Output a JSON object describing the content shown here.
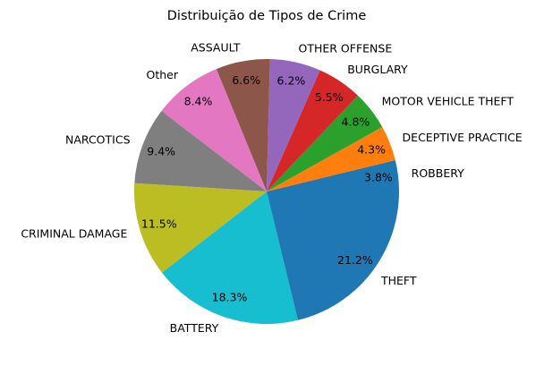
{
  "chart_data": {
    "type": "pie",
    "title": "Distribuição de Tipos de Crime",
    "start_angle_deg": 0,
    "direction": "counterclockwise",
    "slices": [
      {
        "label": "ROBBERY",
        "value": 3.8,
        "pct_label": "3.8%",
        "color": "#1f77b4"
      },
      {
        "label": "DECEPTIVE PRACTICE",
        "value": 4.3,
        "pct_label": "4.3%",
        "color": "#ff7f0e"
      },
      {
        "label": "MOTOR VEHICLE THEFT",
        "value": 4.8,
        "pct_label": "4.8%",
        "color": "#2ca02c"
      },
      {
        "label": "BURGLARY",
        "value": 5.5,
        "pct_label": "5.5%",
        "color": "#d62728"
      },
      {
        "label": "OTHER OFFENSE",
        "value": 6.2,
        "pct_label": "6.2%",
        "color": "#9467bd"
      },
      {
        "label": "ASSAULT",
        "value": 6.6,
        "pct_label": "6.6%",
        "color": "#8c564b"
      },
      {
        "label": "Other",
        "value": 8.4,
        "pct_label": "8.4%",
        "color": "#e377c2"
      },
      {
        "label": "NARCOTICS",
        "value": 9.4,
        "pct_label": "9.4%",
        "color": "#7f7f7f"
      },
      {
        "label": "CRIMINAL DAMAGE",
        "value": 11.5,
        "pct_label": "11.5%",
        "color": "#bcbd22"
      },
      {
        "label": "BATTERY",
        "value": 18.3,
        "pct_label": "18.3%",
        "color": "#17becf"
      },
      {
        "label": "THEFT",
        "value": 21.2,
        "pct_label": "21.2%",
        "color": "#1f77b4"
      }
    ]
  }
}
